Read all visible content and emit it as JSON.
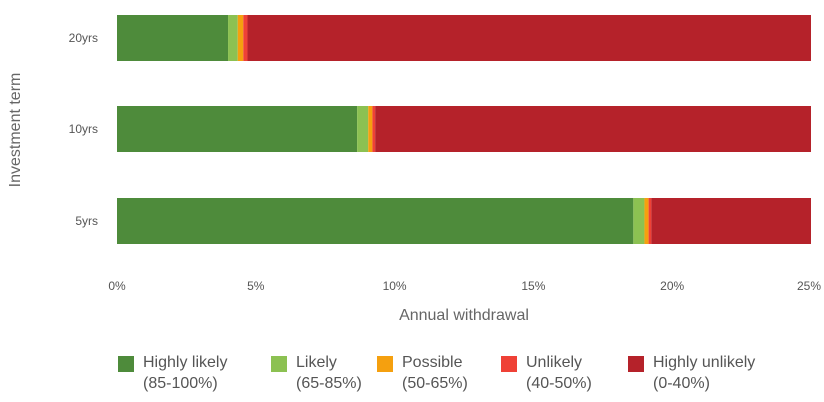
{
  "chart_data": {
    "type": "bar",
    "orientation": "horizontal",
    "stacked": true,
    "xlabel": "Annual withdrawal",
    "ylabel": "Investment term",
    "xlim": [
      0,
      25
    ],
    "x_ticks": [
      "0%",
      "5%",
      "10%",
      "15%",
      "20%",
      "25%"
    ],
    "x_tick_values": [
      0,
      5,
      10,
      15,
      20,
      25
    ],
    "categories": [
      "20yrs",
      "10yrs",
      "5yrs"
    ],
    "series": [
      {
        "name": "Highly likely",
        "range": "(85-100%)",
        "color": "#4e8b3b",
        "values": [
          4.0,
          8.65,
          18.6
        ]
      },
      {
        "name": "Likely",
        "range": "(65-85%)",
        "color": "#8cc152",
        "values": [
          0.35,
          0.4,
          0.4
        ]
      },
      {
        "name": "Possible",
        "range": "(50-65%)",
        "color": "#f5a00f",
        "values": [
          0.2,
          0.15,
          0.15
        ]
      },
      {
        "name": "Unlikely",
        "range": "(40-50%)",
        "color": "#ef4136",
        "values": [
          0.15,
          0.1,
          0.1
        ]
      },
      {
        "name": "Highly unlikely",
        "range": "(0-40%)",
        "color": "#b5222a",
        "values": [
          20.3,
          15.7,
          5.75
        ]
      }
    ],
    "grid": false,
    "legend_position": "bottom"
  }
}
